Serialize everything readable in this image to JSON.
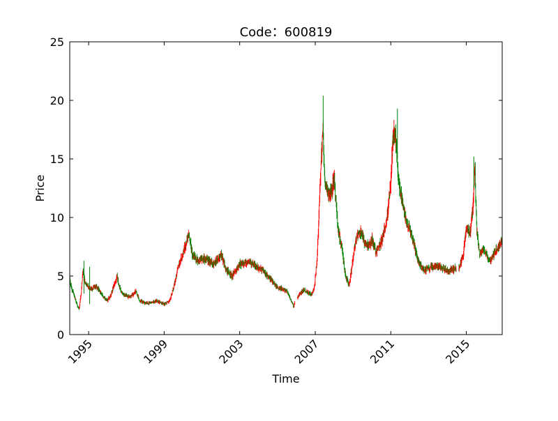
{
  "chart_data": {
    "type": "candlestick",
    "title": "Code：600819",
    "xlabel": "Time",
    "ylabel": "Price",
    "xlim": [
      1994.0,
      2016.9
    ],
    "ylim": [
      0,
      25
    ],
    "yticks": [
      0,
      5,
      10,
      15,
      20,
      25
    ],
    "yticklabels": [
      "0",
      "5",
      "10",
      "15",
      "20",
      "25"
    ],
    "xticks": [
      1995,
      1999,
      2003,
      2007,
      2011,
      2015
    ],
    "xticklabels": [
      "1995",
      "1999",
      "2003",
      "2007",
      "2011",
      "2015"
    ],
    "grid": false,
    "legend": "none",
    "colors": {
      "up": "#ff0000",
      "down": "#008000",
      "axes": "#000000",
      "background": "#ffffff"
    },
    "close_series": {
      "x": [
        1994.0,
        1994.2,
        1994.4,
        1994.5,
        1994.6,
        1994.7,
        1994.8,
        1995.0,
        1995.2,
        1995.4,
        1995.6,
        1995.8,
        1996.0,
        1996.2,
        1996.5,
        1996.6,
        1996.8,
        1997.0,
        1997.2,
        1997.5,
        1997.7,
        1998.0,
        1998.3,
        1998.6,
        1999.0,
        1999.3,
        1999.5,
        1999.7,
        1999.9,
        2000.1,
        2000.3,
        2000.5,
        2000.8,
        2001.2,
        2001.6,
        2002.0,
        2002.3,
        2002.6,
        2003.0,
        2003.4,
        2003.8,
        2004.2,
        2004.6,
        2005.0,
        2005.3,
        2005.5,
        2005.7,
        2005.85,
        2006.0,
        2006.2,
        2006.4,
        2006.6,
        2006.8,
        2006.95,
        2007.1,
        2007.2,
        2007.3,
        2007.4,
        2007.5,
        2007.7,
        2007.9,
        2008.0,
        2008.2,
        2008.4,
        2008.6,
        2008.8,
        2009.0,
        2009.2,
        2009.4,
        2009.6,
        2009.8,
        2010.0,
        2010.2,
        2010.4,
        2010.6,
        2010.8,
        2011.0,
        2011.1,
        2011.2,
        2011.3,
        2011.4,
        2011.6,
        2011.8,
        2012.0,
        2012.2,
        2012.4,
        2012.6,
        2012.8,
        2013.2,
        2013.6,
        2014.0,
        2014.4,
        2014.6,
        2014.8,
        2015.0,
        2015.2,
        2015.35,
        2015.45,
        2015.55,
        2015.7,
        2015.9,
        2016.1,
        2016.3,
        2016.5,
        2016.7,
        2016.9
      ],
      "y": [
        4.5,
        3.5,
        2.5,
        2.2,
        3.5,
        5.5,
        4.5,
        4.0,
        3.9,
        4.1,
        3.7,
        3.2,
        2.9,
        3.5,
        5.0,
        4.2,
        3.4,
        3.3,
        3.2,
        3.7,
        2.9,
        2.7,
        2.7,
        2.9,
        2.6,
        2.9,
        4.0,
        5.5,
        6.5,
        7.5,
        8.5,
        6.8,
        6.3,
        6.5,
        6.0,
        6.8,
        5.5,
        5.0,
        6.0,
        6.2,
        5.9,
        5.5,
        4.8,
        4.0,
        3.9,
        3.7,
        3.0,
        2.4,
        3.0,
        3.5,
        3.8,
        3.6,
        3.4,
        4.0,
        6.5,
        10.5,
        14.5,
        17.5,
        13.0,
        12.0,
        12.5,
        13.5,
        9.0,
        7.5,
        5.0,
        4.2,
        6.5,
        8.5,
        8.8,
        8.0,
        7.5,
        8.2,
        7.0,
        7.5,
        8.5,
        10.0,
        13.0,
        16.5,
        17.5,
        16.0,
        13.0,
        11.5,
        9.8,
        9.0,
        8.0,
        6.5,
        5.8,
        5.5,
        5.8,
        5.8,
        5.4,
        5.6,
        5.8,
        6.5,
        9.0,
        8.8,
        11.0,
        14.5,
        9.0,
        7.0,
        7.2,
        6.7,
        6.3,
        7.0,
        7.5,
        8.0
      ]
    }
  }
}
